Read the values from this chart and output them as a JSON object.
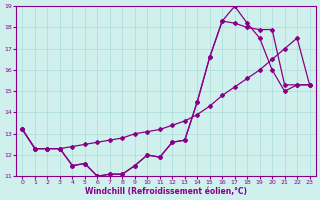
{
  "xlabel": "Windchill (Refroidissement éolien,°C)",
  "bg_color": "#cff0ed",
  "line_color": "#880088",
  "grid_color": "#aaddda",
  "xlim": [
    -0.5,
    23.5
  ],
  "ylim": [
    11,
    19
  ],
  "xticks": [
    0,
    1,
    2,
    3,
    4,
    5,
    6,
    7,
    8,
    9,
    10,
    11,
    12,
    13,
    14,
    15,
    16,
    17,
    18,
    19,
    20,
    21,
    22,
    23
  ],
  "yticks": [
    11,
    12,
    13,
    14,
    15,
    16,
    17,
    18,
    19
  ],
  "series1_x": [
    0,
    1,
    2,
    3,
    4,
    5,
    6,
    7,
    8,
    9,
    10,
    11,
    12,
    13,
    14,
    15,
    16,
    17,
    18,
    19,
    20,
    21,
    22,
    23
  ],
  "series1_y": [
    13.2,
    12.3,
    12.3,
    12.3,
    11.5,
    11.6,
    11.0,
    11.1,
    11.1,
    11.5,
    12.0,
    11.9,
    12.6,
    12.7,
    14.5,
    16.6,
    18.3,
    18.2,
    18.0,
    17.9,
    17.9,
    15.3,
    15.3,
    15.3
  ],
  "series2_x": [
    0,
    1,
    2,
    3,
    4,
    5,
    6,
    7,
    8,
    9,
    10,
    11,
    12,
    13,
    14,
    15,
    16,
    17,
    18,
    19,
    20,
    21,
    22,
    23
  ],
  "series2_y": [
    13.2,
    12.3,
    12.3,
    12.3,
    11.5,
    11.6,
    11.0,
    11.1,
    11.1,
    11.5,
    12.0,
    11.9,
    12.6,
    12.7,
    14.5,
    16.6,
    18.3,
    19.0,
    18.2,
    17.5,
    16.0,
    15.0,
    15.3,
    15.3
  ],
  "series3_x": [
    0,
    1,
    2,
    3,
    4,
    5,
    6,
    7,
    8,
    9,
    10,
    11,
    12,
    13,
    14,
    15,
    16,
    17,
    18,
    19,
    20,
    21,
    22,
    23
  ],
  "series3_y": [
    13.2,
    12.3,
    12.3,
    12.3,
    12.4,
    12.5,
    12.6,
    12.7,
    12.8,
    13.0,
    13.1,
    13.2,
    13.4,
    13.6,
    13.9,
    14.3,
    14.8,
    15.2,
    15.6,
    16.0,
    16.5,
    17.0,
    17.5,
    15.3
  ]
}
